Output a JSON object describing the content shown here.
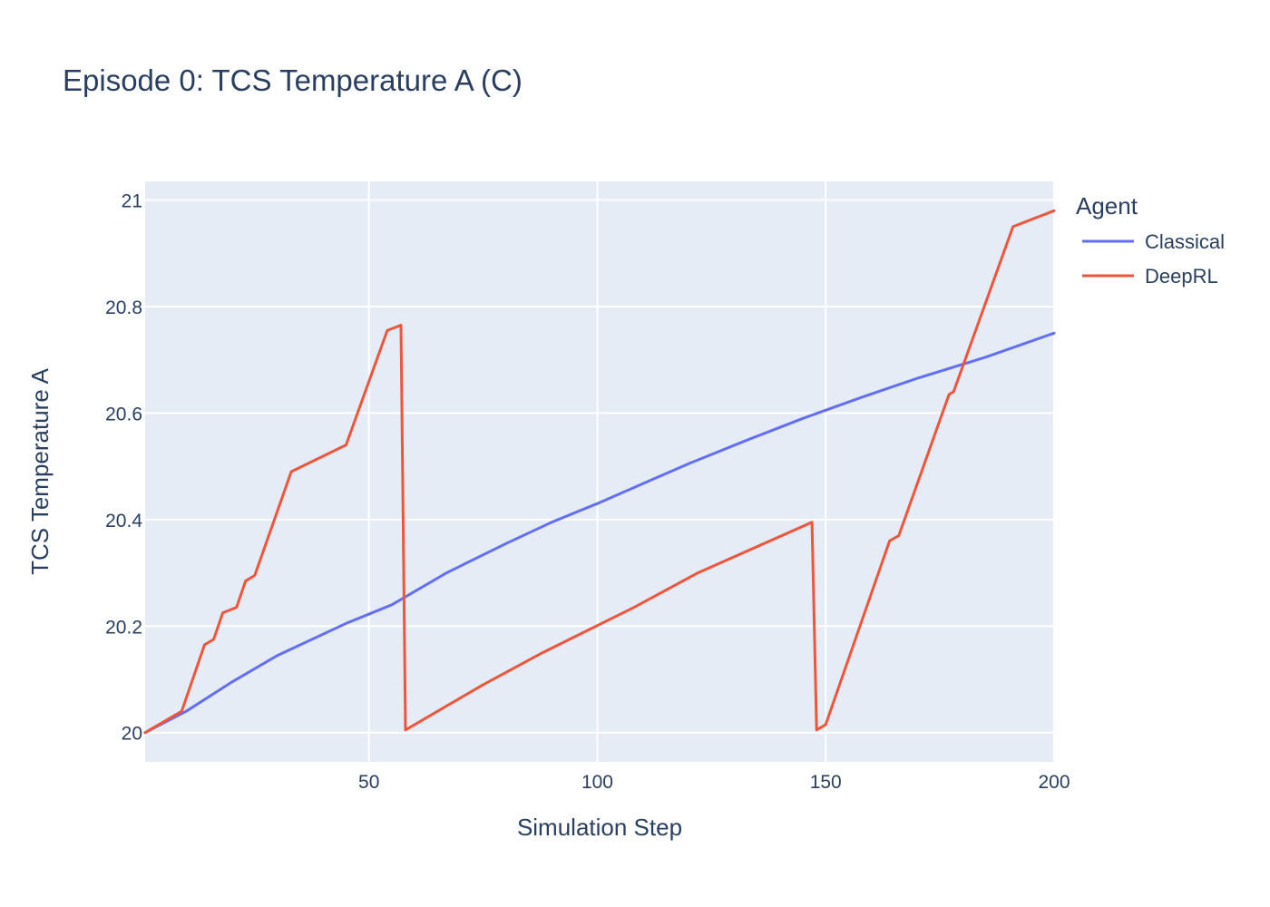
{
  "chart_data": {
    "type": "line",
    "title": "Episode 0: TCS Temperature A (C)",
    "xlabel": "Simulation Step",
    "ylabel": "TCS Temperature A",
    "xlim": [
      1,
      200
    ],
    "ylim": [
      19.945,
      21.035
    ],
    "x_ticks": [
      50,
      100,
      150,
      200
    ],
    "x_tick_labels": [
      "50",
      "100",
      "150",
      "200"
    ],
    "y_ticks": [
      20,
      20.2,
      20.4,
      20.6,
      20.8,
      21
    ],
    "y_tick_labels": [
      "20",
      "20.2",
      "20.4",
      "20.6",
      "20.8",
      "21"
    ],
    "grid": true,
    "legend": {
      "title": "Agent",
      "placement": "right"
    },
    "series": [
      {
        "name": "Classical",
        "color": "#636efa",
        "x": [
          1,
          10,
          20,
          30,
          45,
          55,
          67,
          80,
          90,
          100,
          112,
          120,
          133,
          145,
          158,
          170,
          185,
          200
        ],
        "y": [
          20.0,
          20.04,
          20.095,
          20.145,
          20.205,
          20.24,
          20.3,
          20.355,
          20.395,
          20.43,
          20.475,
          20.505,
          20.55,
          20.59,
          20.63,
          20.665,
          20.705,
          20.75
        ]
      },
      {
        "name": "DeepRL",
        "color": "#ef553b",
        "x": [
          1,
          9,
          14,
          16,
          18,
          21,
          23,
          25,
          33,
          45,
          54,
          57,
          58,
          75,
          88,
          108,
          122,
          147,
          148,
          150,
          164,
          166,
          177,
          178,
          191,
          200
        ],
        "y": [
          20.0,
          20.04,
          20.165,
          20.175,
          20.225,
          20.235,
          20.285,
          20.295,
          20.49,
          20.54,
          20.755,
          20.765,
          20.005,
          20.09,
          20.15,
          20.235,
          20.3,
          20.395,
          20.005,
          20.015,
          20.36,
          20.37,
          20.635,
          20.64,
          20.95,
          20.98
        ]
      }
    ]
  }
}
